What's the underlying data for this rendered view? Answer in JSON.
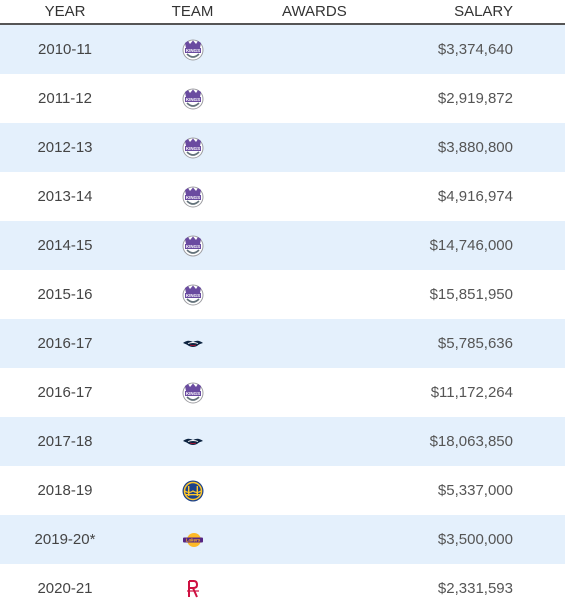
{
  "header": {
    "year": "YEAR",
    "team": "TEAM",
    "awards": "AWARDS",
    "salary": "SALARY"
  },
  "rows": [
    {
      "year": "2010-11",
      "team_icon": "sacramento-kings-logo",
      "awards": "",
      "salary": "$3,374,640"
    },
    {
      "year": "2011-12",
      "team_icon": "sacramento-kings-logo",
      "awards": "",
      "salary": "$2,919,872"
    },
    {
      "year": "2012-13",
      "team_icon": "sacramento-kings-logo",
      "awards": "",
      "salary": "$3,880,800"
    },
    {
      "year": "2013-14",
      "team_icon": "sacramento-kings-logo",
      "awards": "",
      "salary": "$4,916,974"
    },
    {
      "year": "2014-15",
      "team_icon": "sacramento-kings-logo",
      "awards": "",
      "salary": "$14,746,000"
    },
    {
      "year": "2015-16",
      "team_icon": "sacramento-kings-logo",
      "awards": "",
      "salary": "$15,851,950"
    },
    {
      "year": "2016-17",
      "team_icon": "new-orleans-pelicans-logo",
      "awards": "",
      "salary": "$5,785,636"
    },
    {
      "year": "2016-17",
      "team_icon": "sacramento-kings-logo",
      "awards": "",
      "salary": "$11,172,264"
    },
    {
      "year": "2017-18",
      "team_icon": "new-orleans-pelicans-logo",
      "awards": "",
      "salary": "$18,063,850"
    },
    {
      "year": "2018-19",
      "team_icon": "golden-state-warriors-logo",
      "awards": "",
      "salary": "$5,337,000"
    },
    {
      "year": "2019-20*",
      "team_icon": "los-angeles-lakers-logo",
      "awards": "",
      "salary": "$3,500,000"
    },
    {
      "year": "2020-21",
      "team_icon": "houston-rockets-logo",
      "awards": "",
      "salary": "$2,331,593"
    }
  ],
  "colors": {
    "row_alt": "#e4f0fc",
    "kings_purple": "#6a4ba0",
    "pelicans_navy": "#0c2340",
    "warriors_blue": "#1d428a",
    "warriors_gold": "#ffc72c",
    "lakers_gold": "#fdb927",
    "lakers_purple": "#552583",
    "rockets_red": "#ce1141"
  }
}
